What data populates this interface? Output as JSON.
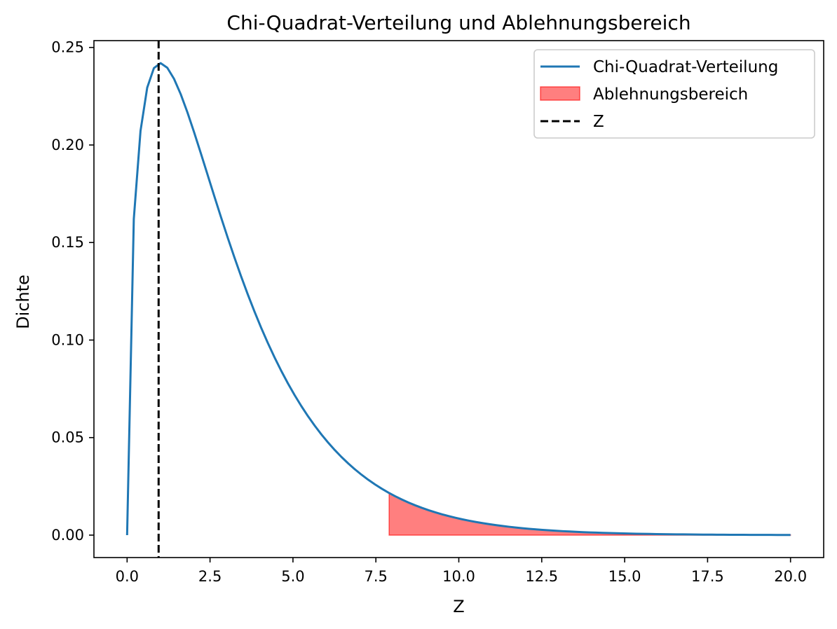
{
  "chart_data": {
    "type": "line",
    "title": "Chi-Quadrat-Verteilung und Ablehnungsbereich",
    "xlabel": "Z",
    "ylabel": "Dichte",
    "xlim": [
      -1.0,
      21.0
    ],
    "ylim": [
      -0.0115,
      0.2535
    ],
    "x_ticks": [
      0.0,
      2.5,
      5.0,
      7.5,
      10.0,
      12.5,
      15.0,
      17.5,
      20.0
    ],
    "x_tick_labels": [
      "0.0",
      "2.5",
      "5.0",
      "7.5",
      "10.0",
      "12.5",
      "15.0",
      "17.5",
      "20.0"
    ],
    "y_ticks": [
      0.0,
      0.05,
      0.1,
      0.15,
      0.2,
      0.25
    ],
    "y_tick_labels": [
      "0.00",
      "0.05",
      "0.10",
      "0.15",
      "0.20",
      "0.25"
    ],
    "grid": false,
    "legend_position": "top-right",
    "series": [
      {
        "name": "Chi-Quadrat-Verteilung",
        "kind": "line",
        "color": "#1f77b4",
        "df": 3,
        "x_range": [
          0,
          20
        ],
        "n_points": 100
      },
      {
        "name": "Ablehnungsbereich",
        "kind": "area",
        "color": "#ff0000",
        "opacity": 0.5,
        "x_range": [
          7.9,
          20
        ]
      },
      {
        "name": "Z",
        "kind": "vline",
        "color": "#000000",
        "style": "dashed",
        "x": 0.95
      }
    ]
  }
}
